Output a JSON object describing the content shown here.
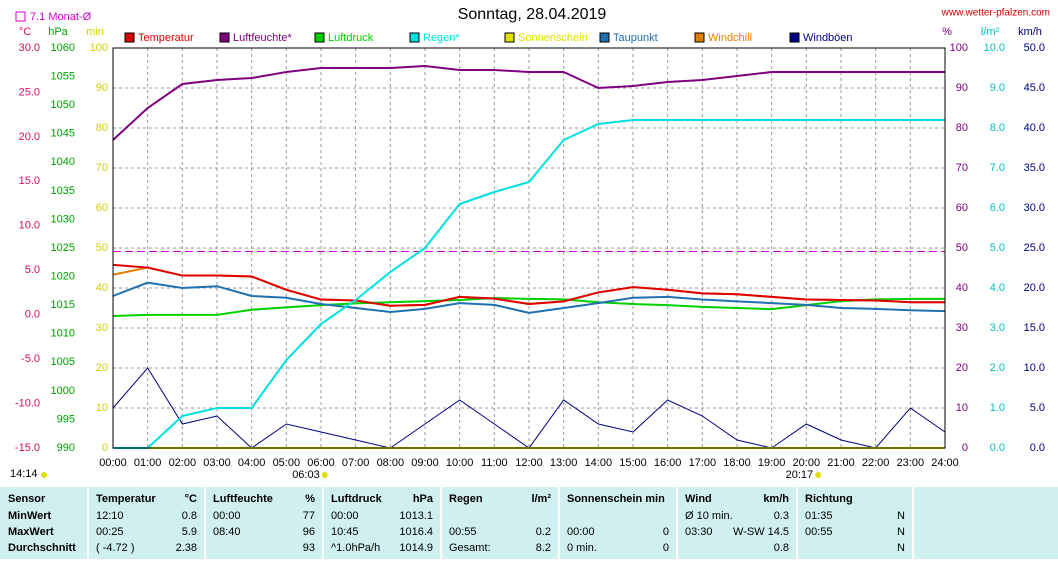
{
  "chart_data": {
    "type": "line",
    "title": "Sonntag, 28.04.2019",
    "source": "www.wetter-pfalzen.com",
    "monthly_avg": {
      "value": 7.1,
      "label": "Monat-Ø"
    },
    "sunrise": "06:03",
    "sunset": "20:17",
    "time": "14:14",
    "categories": [
      "00:00",
      "01:00",
      "02:00",
      "03:00",
      "04:00",
      "05:00",
      "06:00",
      "07:00",
      "08:00",
      "09:00",
      "10:00",
      "11:00",
      "12:00",
      "13:00",
      "14:00",
      "15:00",
      "16:00",
      "17:00",
      "18:00",
      "19:00",
      "20:00",
      "21:00",
      "22:00",
      "23:00",
      "24:00"
    ],
    "axes": [
      {
        "name": "°C",
        "side": "left",
        "color": "#d01060",
        "lim": [
          -15,
          30
        ],
        "ticks": [
          {
            "value": -15,
            "label": "-15.0"
          },
          {
            "value": -10,
            "label": "-10.0"
          },
          {
            "value": -5,
            "label": "-5.0"
          },
          {
            "value": 0,
            "label": "0.0"
          },
          {
            "value": 5,
            "label": "5.0"
          },
          {
            "value": 10,
            "label": "10.0"
          },
          {
            "value": 15,
            "label": "15.0"
          },
          {
            "value": 20,
            "label": "20.0"
          },
          {
            "value": 25,
            "label": "25.0"
          },
          {
            "value": 30,
            "label": "30.0"
          }
        ]
      },
      {
        "name": "hPa",
        "side": "left",
        "color": "#00a000",
        "lim": [
          990,
          1060
        ],
        "ticks": [
          990,
          995,
          1000,
          1005,
          1010,
          1015,
          1020,
          1025,
          1030,
          1035,
          1040,
          1045,
          1050,
          1055,
          1060
        ]
      },
      {
        "name": "min",
        "side": "left",
        "color": "#d0d000",
        "lim": [
          0,
          100
        ],
        "ticks": [
          0,
          10,
          20,
          30,
          40,
          50,
          60,
          70,
          80,
          90,
          100
        ]
      },
      {
        "name": "%",
        "side": "right",
        "color": "#800080",
        "lim": [
          0,
          100
        ],
        "ticks": [
          0,
          10,
          20,
          30,
          40,
          50,
          60,
          70,
          80,
          90,
          100
        ]
      },
      {
        "name": "l/m²",
        "side": "right",
        "color": "#00c0c0",
        "lim": [
          0,
          10
        ],
        "ticks": [
          {
            "value": 0,
            "label": "0.0"
          },
          {
            "value": 1,
            "label": "1.0"
          },
          {
            "value": 2,
            "label": "2.0"
          },
          {
            "value": 3,
            "label": "3.0"
          },
          {
            "value": 4,
            "label": "4.0"
          },
          {
            "value": 5,
            "label": "5.0"
          },
          {
            "value": 6,
            "label": "6.0"
          },
          {
            "value": 7,
            "label": "7.0"
          },
          {
            "value": 8,
            "label": "8.0"
          },
          {
            "value": 9,
            "label": "9.0"
          },
          {
            "value": 10,
            "label": "10.0"
          }
        ]
      },
      {
        "name": "km/h",
        "side": "right",
        "color": "#000080",
        "lim": [
          0,
          50
        ],
        "ticks": [
          {
            "value": 0,
            "label": "0.0"
          },
          {
            "value": 5,
            "label": "5.0"
          },
          {
            "value": 10,
            "label": "10.0"
          },
          {
            "value": 15,
            "label": "15.0"
          },
          {
            "value": 20,
            "label": "20.0"
          },
          {
            "value": 25,
            "label": "25.0"
          },
          {
            "value": 30,
            "label": "30.0"
          },
          {
            "value": 35,
            "label": "35.0"
          },
          {
            "value": 40,
            "label": "40.0"
          },
          {
            "value": 45,
            "label": "45.0"
          },
          {
            "value": 50,
            "label": "50.0"
          }
        ]
      }
    ],
    "series": [
      {
        "name": "Temperatur",
        "color": "#e00000",
        "axis": "°C",
        "values": [
          5.6,
          5.3,
          4.4,
          4.4,
          4.3,
          2.8,
          1.7,
          1.6,
          1.0,
          1.1,
          2.0,
          1.8,
          1.2,
          1.5,
          2.5,
          3.1,
          2.8,
          2.4,
          2.3,
          2.0,
          1.7,
          1.65,
          1.6,
          1.4,
          1.4
        ]
      },
      {
        "name": "Luftfeuchte*",
        "color": "#800080",
        "axis": "%",
        "values": [
          77,
          85,
          91,
          92,
          92.5,
          94,
          95,
          95,
          95,
          95.5,
          94.5,
          94.5,
          94,
          94,
          90,
          90.5,
          91.5,
          92,
          93,
          94,
          94,
          94,
          94,
          94,
          94
        ]
      },
      {
        "name": "Luftdruck",
        "color": "#00d000",
        "axis": "hPa",
        "values": [
          1013.1,
          1013.3,
          1013.3,
          1013.3,
          1014.2,
          1014.6,
          1015,
          1015.3,
          1015.5,
          1015.7,
          1015.9,
          1016.25,
          1016.1,
          1016,
          1015.5,
          1015.2,
          1015,
          1014.7,
          1014.5,
          1014.3,
          1015,
          1015.7,
          1016,
          1016.1,
          1016.1
        ]
      },
      {
        "name": "Regen*",
        "color": "#00e0e0",
        "axis": "l/m²",
        "values": [
          0,
          0,
          0.8,
          1.0,
          1.0,
          2.2,
          3.1,
          3.7,
          4.4,
          5.0,
          6.1,
          6.4,
          6.65,
          7.7,
          8.1,
          8.2,
          8.2,
          8.2,
          8.2,
          8.2,
          8.2,
          8.2,
          8.2,
          8.2,
          8.2
        ]
      },
      {
        "name": "Sonnenschein",
        "color": "#e0e000",
        "axis": "min",
        "values": [
          0,
          0,
          0,
          0,
          0,
          0,
          0,
          0,
          0,
          0,
          0,
          0,
          0,
          0,
          0,
          0,
          0,
          0,
          0,
          0,
          0,
          0,
          0,
          0,
          0
        ]
      },
      {
        "name": "Taupunkt",
        "color": "#2070b0",
        "axis": "°C",
        "values": [
          2.1,
          3.6,
          3.0,
          3.2,
          2.1,
          1.9,
          1.2,
          0.75,
          0.3,
          0.65,
          1.3,
          1.1,
          0.2,
          0.75,
          1.3,
          1.9,
          2.0,
          1.7,
          1.5,
          1.3,
          1.1,
          0.75,
          0.65,
          0.5,
          0.4
        ]
      },
      {
        "name": "Windchill",
        "color": "#e08000",
        "axis": "°C",
        "values": [
          4.5,
          5.3,
          4.4,
          4.4,
          4.3,
          2.8,
          1.7,
          1.6,
          1.0,
          1.1,
          2.0,
          1.8,
          1.2,
          1.5,
          2.5,
          3.1,
          2.8,
          2.4,
          2.3,
          2.0,
          1.7,
          1.65,
          1.6,
          1.4,
          1.4
        ]
      },
      {
        "name": "Windböen",
        "color": "#000080",
        "axis": "km/h",
        "values": [
          5,
          10,
          3,
          4,
          0,
          3,
          2,
          1,
          0,
          3,
          6,
          3,
          0,
          6,
          3,
          2,
          6,
          4,
          1,
          0,
          3,
          1,
          0,
          5,
          2
        ]
      }
    ]
  },
  "table": {
    "header": [
      [
        "Sensor"
      ],
      [
        "Temperatur",
        "°C"
      ],
      [
        "Luftfeuchte",
        "%"
      ],
      [
        "Luftdruck",
        "hPa"
      ],
      [
        "Regen",
        "l/m²"
      ],
      [
        "Sonnenschein min"
      ],
      [
        "Wind",
        "km/h"
      ],
      [
        "Richtung"
      ]
    ],
    "rows": [
      [
        "MinWert",
        "12:10",
        "0.8",
        "00:00",
        "77",
        "00:00",
        "1013.1",
        null,
        null,
        null,
        null,
        "Ø 10 min.",
        "0.3",
        "01:35",
        "N"
      ],
      [
        "MaxWert",
        "00:25",
        "5.9",
        "08:40",
        "96",
        "10:45",
        "1016.4",
        "00:55",
        "0.2",
        "00:00",
        "0",
        "03:30",
        "W-SW 14.5",
        "00:55",
        "N"
      ],
      [
        "Durchschnitt",
        "( -4.72 )",
        "2.38",
        null,
        "93",
        "^1.0hPa/h",
        "1014.9",
        "Gesamt:",
        "8.2",
        "0 min.",
        "0",
        null,
        "0.8",
        null,
        "N"
      ]
    ]
  }
}
